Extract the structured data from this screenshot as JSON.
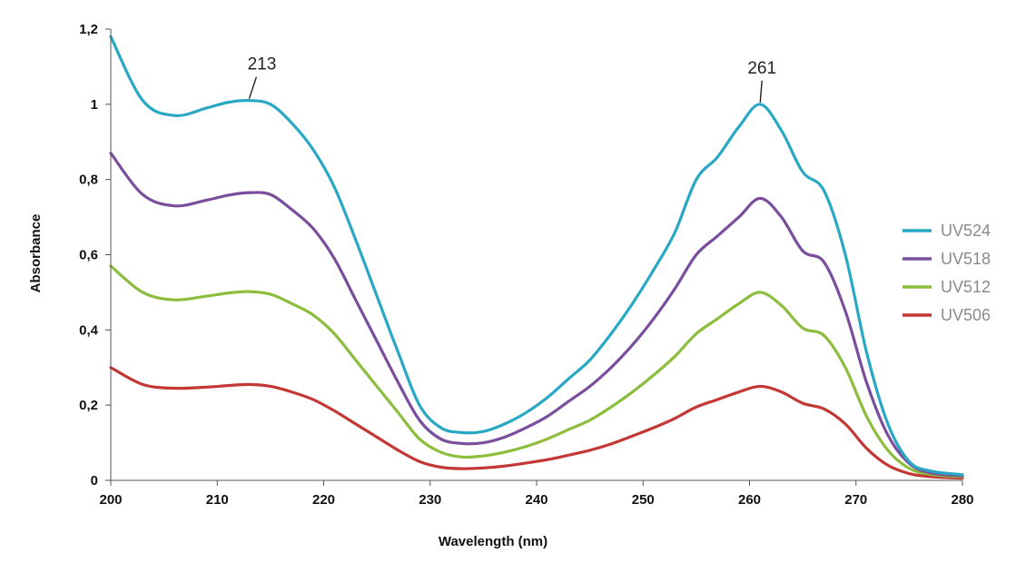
{
  "chart_data": {
    "type": "line",
    "title": "",
    "xlabel": "Wavelength (nm)",
    "ylabel": "Absorbance",
    "xlim": [
      200,
      280
    ],
    "ylim": [
      0,
      1.2
    ],
    "x_ticks": [
      200,
      210,
      220,
      230,
      240,
      250,
      260,
      270,
      280
    ],
    "x_tick_labels": [
      "200",
      "210",
      "220",
      "230",
      "240",
      "250",
      "260",
      "270",
      "280"
    ],
    "y_ticks": [
      0,
      0.2,
      0.4,
      0.6,
      0.8,
      1.0,
      1.2
    ],
    "y_tick_labels": [
      "0",
      "0,2",
      "0,4",
      "0,6",
      "0,8",
      "1",
      "1,2"
    ],
    "grid": false,
    "legend_position": "right",
    "annotations": [
      {
        "text": "213",
        "x": 213,
        "y": 1.01
      },
      {
        "text": "261",
        "x": 261,
        "y": 1.0
      }
    ],
    "x": [
      200,
      203,
      206,
      209,
      211,
      213,
      215,
      217,
      219,
      221,
      223,
      225,
      227,
      229,
      231,
      233,
      235,
      237,
      239,
      241,
      243,
      245,
      247,
      249,
      251,
      253,
      255,
      257,
      259,
      261,
      263,
      265,
      267,
      269,
      271,
      273,
      275,
      277,
      280
    ],
    "series": [
      {
        "name": "UV524",
        "color": "#29A8C4",
        "values": [
          1.18,
          1.01,
          0.97,
          0.99,
          1.005,
          1.01,
          1.0,
          0.95,
          0.88,
          0.78,
          0.64,
          0.49,
          0.34,
          0.2,
          0.14,
          0.127,
          0.13,
          0.15,
          0.18,
          0.22,
          0.27,
          0.32,
          0.39,
          0.47,
          0.56,
          0.66,
          0.8,
          0.86,
          0.94,
          1.0,
          0.93,
          0.82,
          0.77,
          0.6,
          0.34,
          0.15,
          0.05,
          0.025,
          0.015
        ]
      },
      {
        "name": "UV518",
        "color": "#7A4E9C",
        "values": [
          0.87,
          0.76,
          0.73,
          0.745,
          0.758,
          0.765,
          0.76,
          0.72,
          0.67,
          0.59,
          0.48,
          0.37,
          0.26,
          0.16,
          0.11,
          0.098,
          0.1,
          0.115,
          0.14,
          0.17,
          0.21,
          0.25,
          0.3,
          0.36,
          0.43,
          0.51,
          0.6,
          0.65,
          0.7,
          0.75,
          0.7,
          0.61,
          0.58,
          0.45,
          0.26,
          0.12,
          0.045,
          0.02,
          0.012
        ]
      },
      {
        "name": "UV512",
        "color": "#8CBD3C",
        "values": [
          0.57,
          0.5,
          0.48,
          0.49,
          0.498,
          0.502,
          0.495,
          0.47,
          0.44,
          0.39,
          0.32,
          0.25,
          0.18,
          0.11,
          0.075,
          0.062,
          0.065,
          0.075,
          0.09,
          0.11,
          0.135,
          0.16,
          0.195,
          0.235,
          0.28,
          0.33,
          0.39,
          0.43,
          0.47,
          0.5,
          0.465,
          0.405,
          0.385,
          0.3,
          0.17,
          0.08,
          0.032,
          0.016,
          0.01
        ]
      },
      {
        "name": "UV506",
        "color": "#C33834",
        "values": [
          0.3,
          0.255,
          0.245,
          0.248,
          0.252,
          0.255,
          0.25,
          0.235,
          0.215,
          0.185,
          0.15,
          0.115,
          0.08,
          0.05,
          0.035,
          0.031,
          0.033,
          0.038,
          0.046,
          0.055,
          0.067,
          0.08,
          0.097,
          0.118,
          0.14,
          0.165,
          0.195,
          0.215,
          0.235,
          0.25,
          0.235,
          0.205,
          0.19,
          0.15,
          0.085,
          0.04,
          0.018,
          0.01,
          0.006
        ]
      }
    ]
  }
}
